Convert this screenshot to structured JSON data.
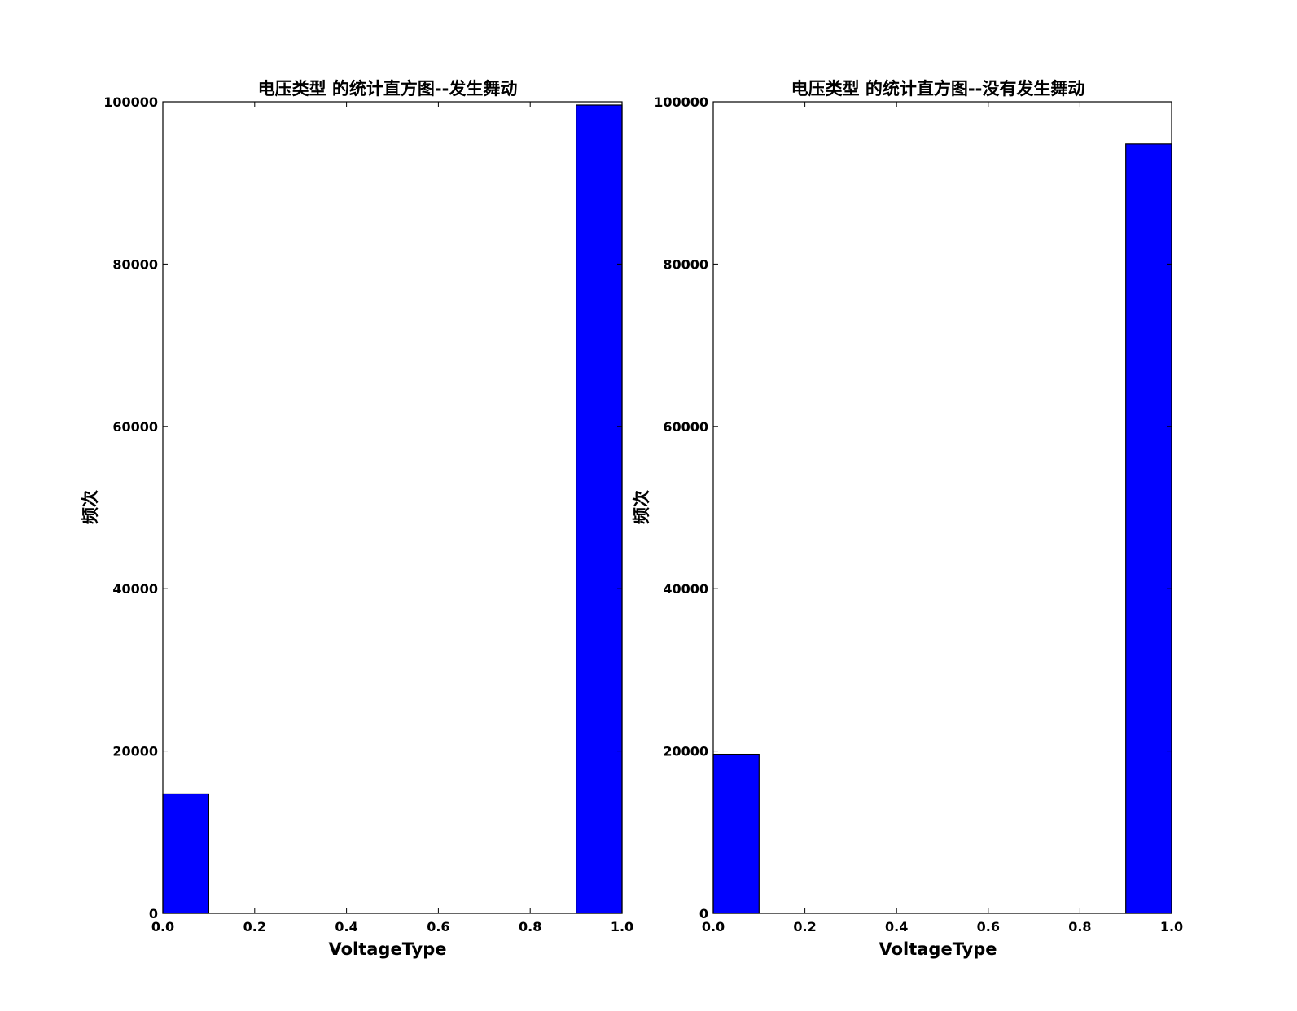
{
  "chart_data": [
    {
      "type": "bar",
      "title": "电压类型 的统计直方图--发生舞动",
      "xlabel": "VoltageType",
      "ylabel": "频次",
      "bins": [
        {
          "x0": 0.0,
          "x1": 0.1,
          "count": 14700
        },
        {
          "x0": 0.9,
          "x1": 1.0,
          "count": 99600
        }
      ],
      "xlim": [
        0.0,
        1.0
      ],
      "ylim": [
        0,
        100000
      ],
      "xticks": [
        "0.0",
        "0.2",
        "0.4",
        "0.6",
        "0.8",
        "1.0"
      ],
      "yticks": [
        "0",
        "20000",
        "40000",
        "60000",
        "80000",
        "100000"
      ],
      "bar_color": "#0000ff",
      "grid": false
    },
    {
      "type": "bar",
      "title": "电压类型 的统计直方图--没有发生舞动",
      "xlabel": "VoltageType",
      "ylabel": "频次",
      "bins": [
        {
          "x0": 0.0,
          "x1": 0.1,
          "count": 19600
        },
        {
          "x0": 0.9,
          "x1": 1.0,
          "count": 94800
        }
      ],
      "xlim": [
        0.0,
        1.0
      ],
      "ylim": [
        0,
        100000
      ],
      "xticks": [
        "0.0",
        "0.2",
        "0.4",
        "0.6",
        "0.8",
        "1.0"
      ],
      "yticks": [
        "0",
        "20000",
        "40000",
        "60000",
        "80000",
        "100000"
      ],
      "bar_color": "#0000ff",
      "grid": false
    }
  ]
}
